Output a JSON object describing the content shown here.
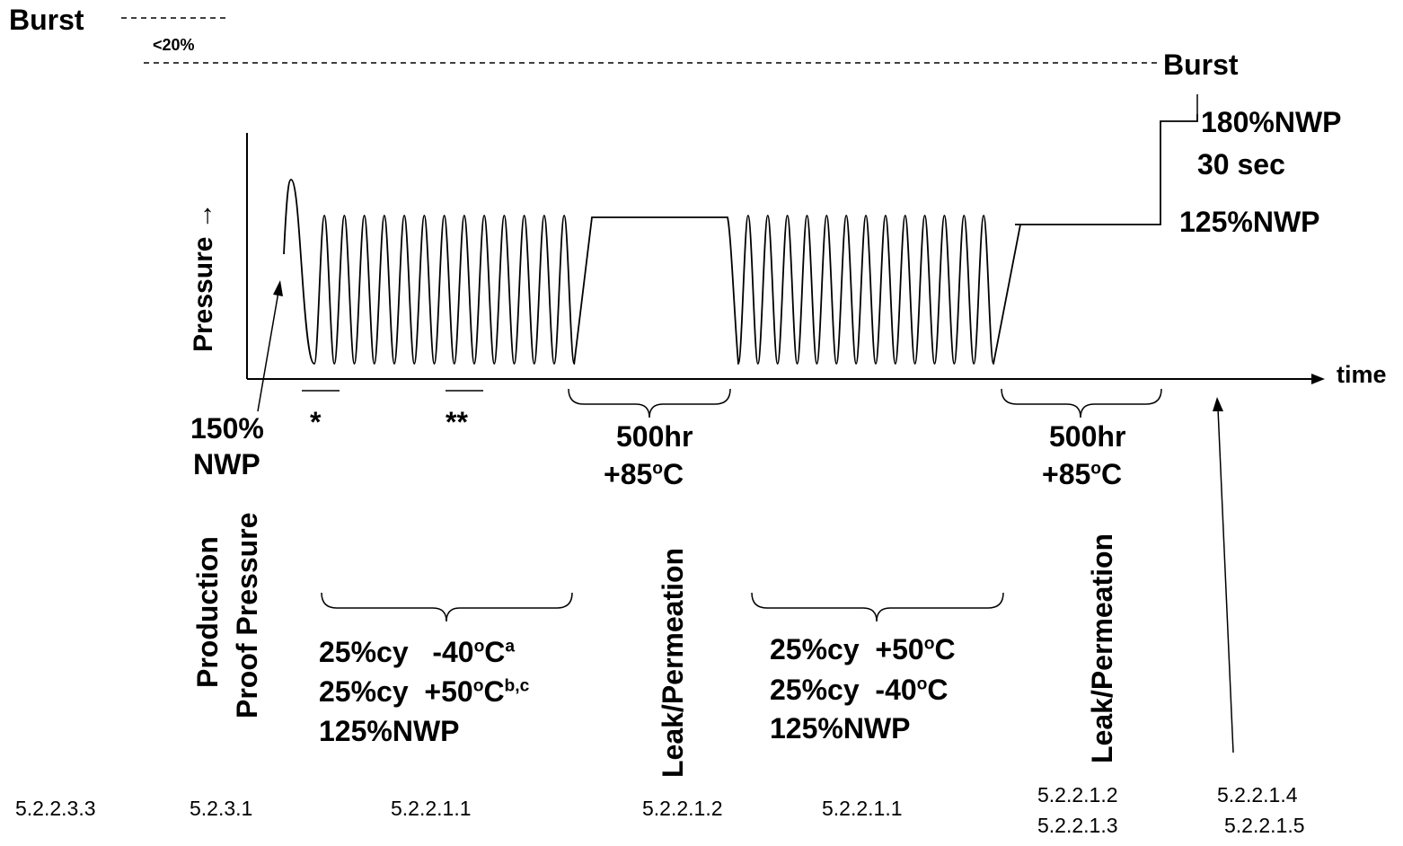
{
  "burst_top": "Burst",
  "lt20": "<20%",
  "burst_right": "Burst",
  "pct180": "180%NWP",
  "sec30": "30 sec",
  "pct125_right": "125%NWP",
  "y_axis": "Pressure →",
  "x_axis": "time",
  "nwp150_l1": "150%",
  "nwp150_l2": "NWP",
  "star1": "*",
  "star2": "**",
  "hold1_l1": "500hr",
  "hold1_l2": "+85",
  "hold1_deg": "o",
  "hold1_unit": "C",
  "hold2_l1": "500hr",
  "hold2_l2": "+85",
  "hold2_deg": "o",
  "hold2_unit": "C",
  "vert_production": "Production",
  "vert_proof": "Proof Pressure",
  "vert_leak1": "Leak/Permeation",
  "vert_leak2": "Leak/Permeation",
  "grp1": {
    "r1a": "25%cy   -40",
    "r1deg": "o",
    "r1c": "C",
    "r1sup": "a",
    "r2a": "25%cy  +50",
    "r2deg": "o",
    "r2c": "C",
    "r2sup": "b,c",
    "r3": "125%NWP"
  },
  "grp2": {
    "r1a": "25%cy  +50",
    "r1deg": "o",
    "r1c": "C",
    "r2a": "25%cy  -40",
    "r2deg": "o",
    "r2c": "C",
    "r3": "125%NWP"
  },
  "refs": {
    "r1": "5.2.2.3.3",
    "r2": "5.2.3.1",
    "r3": "5.2.2.1.1",
    "r4": "5.2.2.1.2",
    "r5": "5.2.2.1.1",
    "r6": "5.2.2.1.2",
    "r7": "5.2.2.1.3",
    "r8": "5.2.2.1.4",
    "r9": "5.2.2.1.5"
  }
}
